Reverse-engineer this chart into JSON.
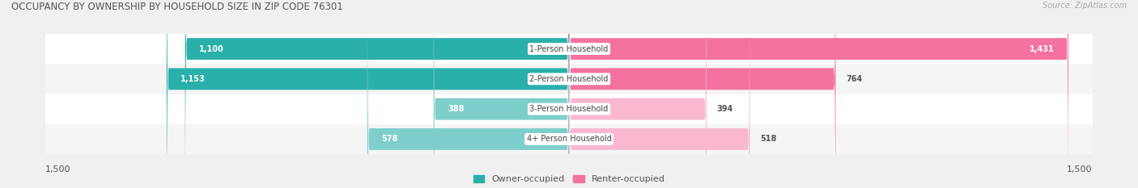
{
  "title": "OCCUPANCY BY OWNERSHIP BY HOUSEHOLD SIZE IN ZIP CODE 76301",
  "source": "Source: ZipAtlas.com",
  "categories": [
    "1-Person Household",
    "2-Person Household",
    "3-Person Household",
    "4+ Person Household"
  ],
  "owner_values": [
    1100,
    1153,
    388,
    578
  ],
  "renter_values": [
    1431,
    764,
    394,
    518
  ],
  "owner_color_dark": "#2ab0aa",
  "owner_color_light": "#7ecfcc",
  "renter_color_dark": "#f472a0",
  "renter_color_light": "#f9b8d0",
  "axis_max": 1500,
  "label_color": "#555555",
  "value_label_color_white": "#ffffff",
  "title_color": "#555555",
  "source_color": "#aaaaaa",
  "bg_color": "#f0f0f0",
  "bar_row_bg": "#ffffff",
  "bar_row_alt": "#f0f0f0",
  "legend_owner": "Owner-occupied",
  "legend_renter": "Renter-occupied",
  "figsize": [
    14.06,
    2.33
  ],
  "dpi": 100
}
